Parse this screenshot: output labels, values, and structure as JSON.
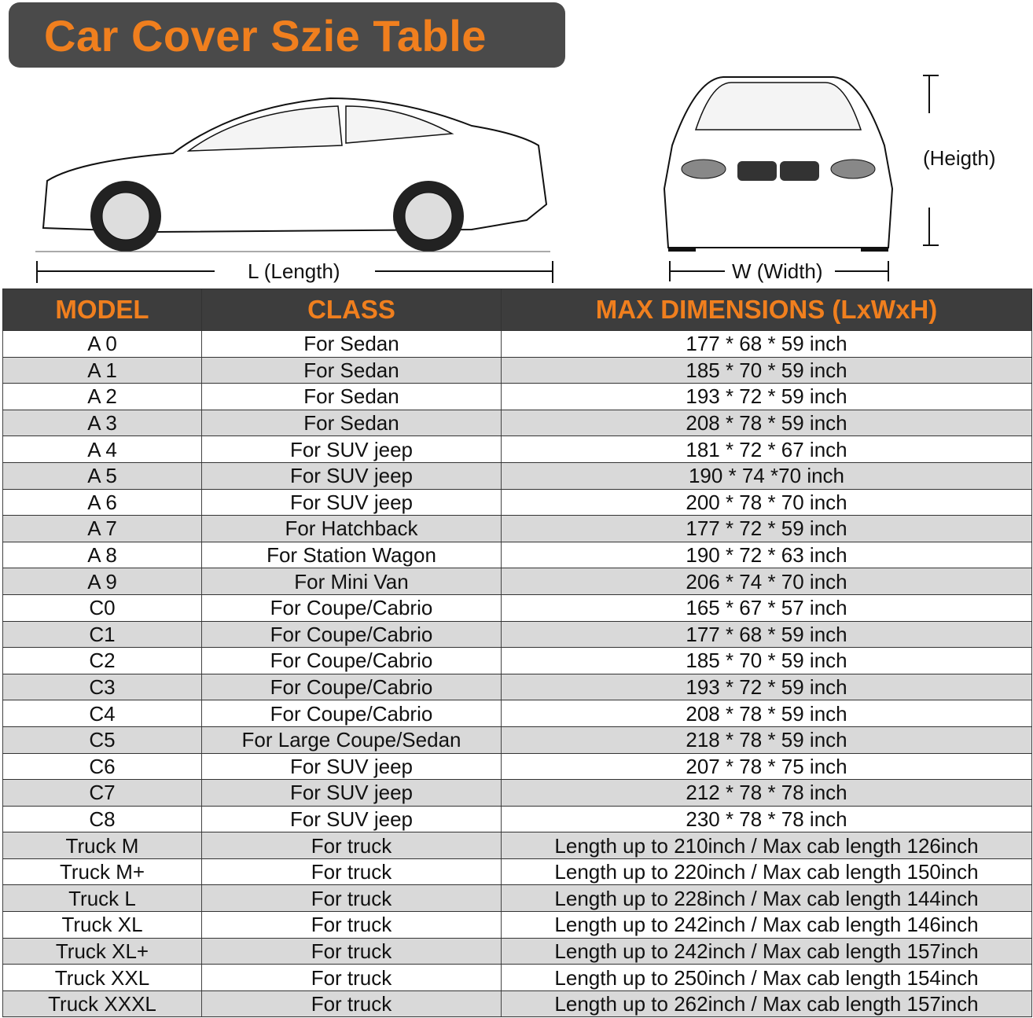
{
  "title": "Car Cover Szie Table",
  "labels": {
    "length": "L (Length)",
    "width": "W (Width)",
    "height": "(Heigth)"
  },
  "colors": {
    "accent": "#f07f1e",
    "header_bg": "#3d3d3d",
    "alt_row": "#d9d9d9"
  },
  "table": {
    "headers": [
      "MODEL",
      "CLASS",
      "MAX DIMENSIONS (LxWxH)"
    ],
    "rows": [
      [
        "A 0",
        "For Sedan",
        "177 * 68 * 59 inch"
      ],
      [
        "A 1",
        "For Sedan",
        "185 * 70 * 59 inch"
      ],
      [
        "A 2",
        "For Sedan",
        "193 * 72 * 59 inch"
      ],
      [
        "A 3",
        "For Sedan",
        "208 * 78 * 59 inch"
      ],
      [
        "A 4",
        "For SUV jeep",
        "181 * 72 * 67 inch"
      ],
      [
        "A 5",
        "For SUV jeep",
        "190 * 74  *70 inch"
      ],
      [
        "A 6",
        "For SUV jeep",
        "200 * 78 * 70 inch"
      ],
      [
        "A 7",
        "For Hatchback",
        "177 * 72 * 59 inch"
      ],
      [
        "A 8",
        "For Station Wagon",
        "190 * 72 * 63 inch"
      ],
      [
        "A 9",
        "For Mini Van",
        "206 * 74 * 70 inch"
      ],
      [
        "C0",
        "For Coupe/Cabrio",
        "165 * 67 * 57 inch"
      ],
      [
        "C1",
        "For Coupe/Cabrio",
        "177 * 68 * 59 inch"
      ],
      [
        "C2",
        "For Coupe/Cabrio",
        "185 * 70 * 59 inch"
      ],
      [
        "C3",
        "For Coupe/Cabrio",
        "193 * 72 * 59 inch"
      ],
      [
        "C4",
        "For Coupe/Cabrio",
        "208 * 78 * 59 inch"
      ],
      [
        "C5",
        "For Large Coupe/Sedan",
        "218 * 78 * 59 inch"
      ],
      [
        "C6",
        "For SUV jeep",
        "207 * 78 * 75 inch"
      ],
      [
        "C7",
        "For SUV jeep",
        "212 * 78 * 78 inch"
      ],
      [
        "C8",
        "For SUV jeep",
        "230 * 78 * 78 inch"
      ],
      [
        "Truck M",
        "For truck",
        "Length up to 210inch / Max cab length 126inch"
      ],
      [
        "Truck M+",
        "For truck",
        "Length up to 220inch / Max cab length 150inch"
      ],
      [
        "Truck L",
        "For truck",
        "Length up to 228inch / Max cab length 144inch"
      ],
      [
        "Truck XL",
        "For truck",
        "Length up to 242inch / Max cab length 146inch"
      ],
      [
        "Truck XL+",
        "For truck",
        "Length up to 242inch / Max cab length 157inch"
      ],
      [
        "Truck XXL",
        "For truck",
        "Length up to 250inch / Max cab length 154inch"
      ],
      [
        "Truck XXXL",
        "For truck",
        "Length up to 262inch / Max cab length 157inch"
      ]
    ]
  }
}
